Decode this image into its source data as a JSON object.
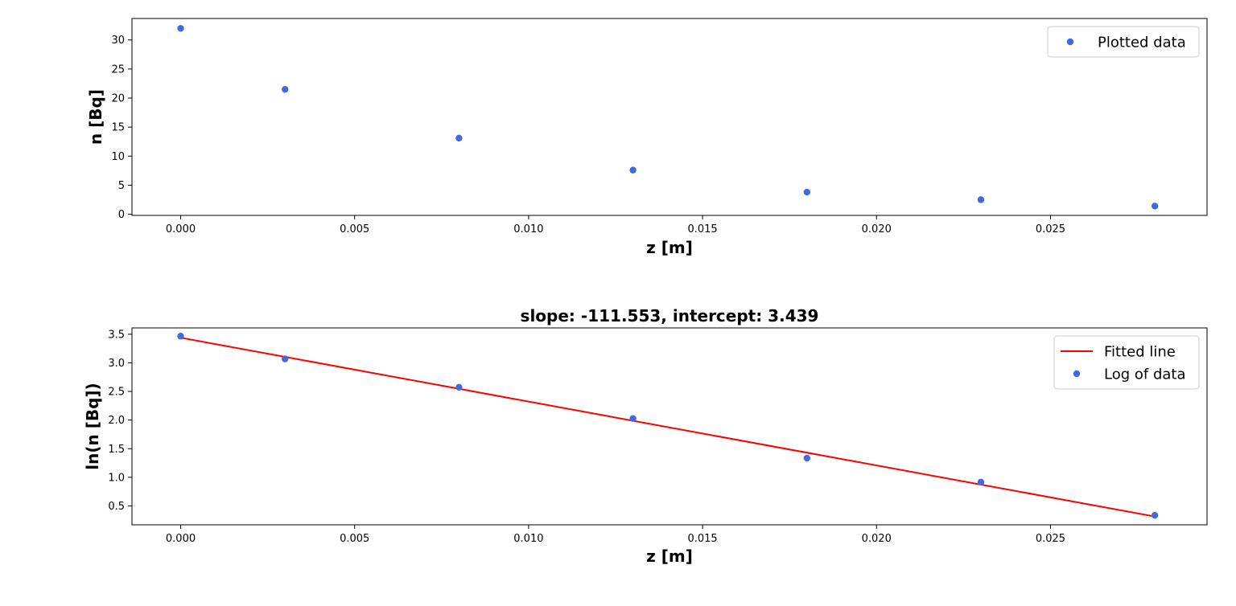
{
  "chart_data": [
    {
      "type": "scatter",
      "title": "",
      "xlabel": "z [m]",
      "ylabel": "n [Bq]",
      "xlim": [
        -0.0014,
        0.0295
      ],
      "ylim": [
        -0.2,
        33.7
      ],
      "xticks": [
        "0.000",
        "0.005",
        "0.010",
        "0.015",
        "0.020",
        "0.025"
      ],
      "xtick_values": [
        0,
        0.005,
        0.01,
        0.015,
        0.02,
        0.025
      ],
      "yticks": [
        "0",
        "5",
        "10",
        "15",
        "20",
        "25",
        "30"
      ],
      "ytick_values": [
        0,
        5,
        10,
        15,
        20,
        25,
        30
      ],
      "grid": false,
      "legend": "upper right",
      "series": [
        {
          "name": "Plotted data",
          "kind": "points",
          "color": "#4169e1",
          "x": [
            0,
            0.003,
            0.008,
            0.013,
            0.018,
            0.023,
            0.028
          ],
          "y": [
            32.0,
            21.5,
            13.1,
            7.6,
            3.8,
            2.5,
            1.4
          ]
        }
      ]
    },
    {
      "type": "line",
      "title": "slope: -111.553, intercept: 3.439",
      "xlabel": "z [m]",
      "ylabel": "ln(n [Bq])",
      "xlim": [
        -0.0014,
        0.0295
      ],
      "ylim": [
        0.17,
        3.61
      ],
      "xticks": [
        "0.000",
        "0.005",
        "0.010",
        "0.015",
        "0.020",
        "0.025"
      ],
      "xtick_values": [
        0,
        0.005,
        0.01,
        0.015,
        0.02,
        0.025
      ],
      "yticks": [
        "0.5",
        "1.0",
        "1.5",
        "2.0",
        "2.5",
        "3.0",
        "3.5"
      ],
      "ytick_values": [
        0.5,
        1.0,
        1.5,
        2.0,
        2.5,
        3.0,
        3.5
      ],
      "grid": false,
      "legend": "upper right",
      "series": [
        {
          "name": "Fitted line",
          "kind": "line",
          "color": "#ff0000",
          "x": [
            0,
            0.028
          ],
          "y": [
            3.439,
            0.315
          ]
        },
        {
          "name": "Log of data",
          "kind": "points",
          "color": "#4169e1",
          "x": [
            0,
            0.003,
            0.008,
            0.013,
            0.018,
            0.023,
            0.028
          ],
          "y": [
            3.466,
            3.068,
            2.573,
            2.028,
            1.335,
            0.916,
            0.336
          ]
        }
      ]
    }
  ]
}
